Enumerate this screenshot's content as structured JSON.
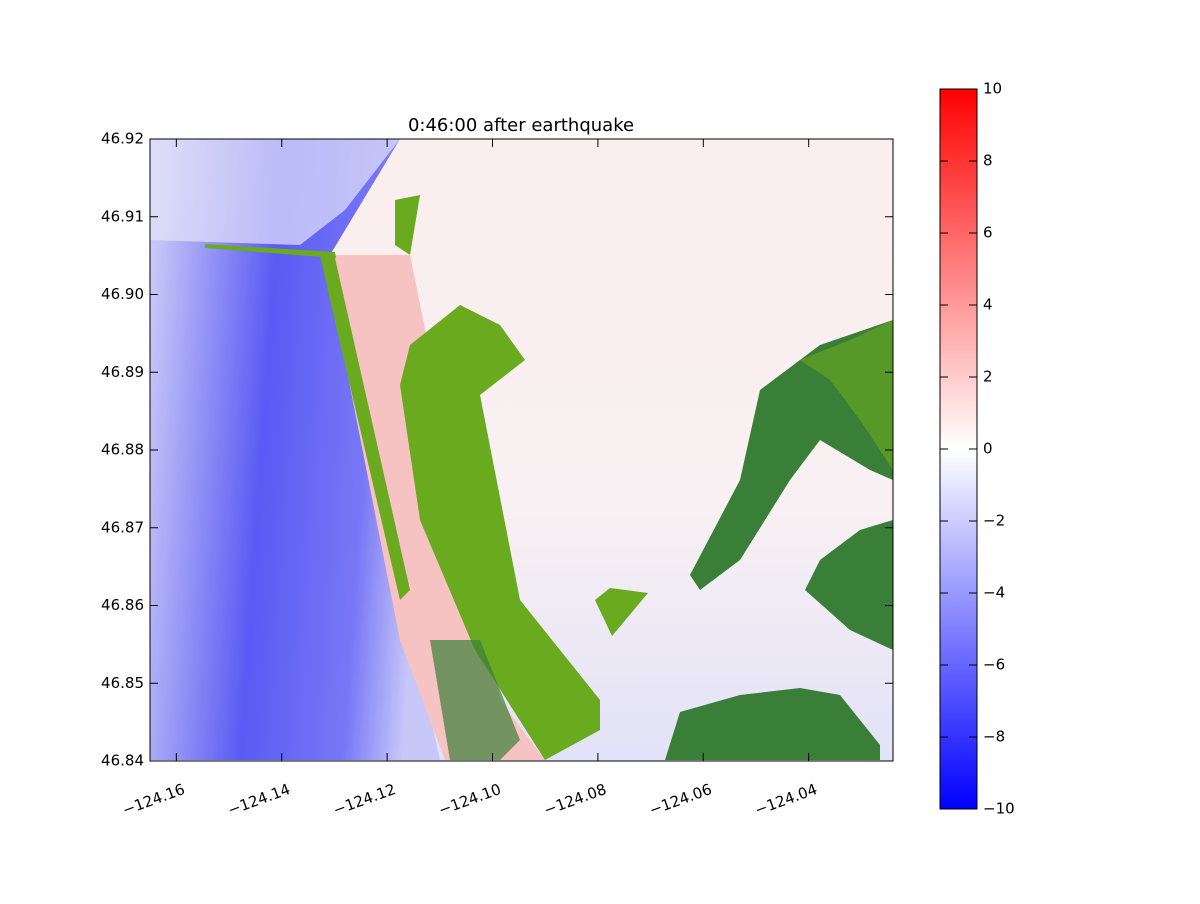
{
  "chart_data": {
    "type": "heatmap",
    "title": "0:46:00 after earthquake",
    "xlim": [
      -124.165,
      -124.024
    ],
    "xticks": [
      {
        "value": -124.16,
        "label": "−124.16"
      },
      {
        "value": -124.14,
        "label": "−124.14"
      },
      {
        "value": -124.12,
        "label": "−124.12"
      },
      {
        "value": -124.1,
        "label": "−124.10"
      },
      {
        "value": -124.08,
        "label": "−124.08"
      },
      {
        "value": -124.06,
        "label": "−124.06"
      },
      {
        "value": -124.04,
        "label": "−124.04"
      }
    ],
    "ylim": [
      46.84,
      46.92
    ],
    "yticks": [
      46.84,
      46.85,
      46.86,
      46.87,
      46.88,
      46.89,
      {
        "value": 46.9,
        "label": "46.90"
      },
      46.91,
      46.92
    ],
    "colorbar": {
      "colormap": "bwr",
      "clim": [
        -10,
        10
      ],
      "ticks": [
        {
          "value": -10,
          "label": "−10"
        },
        {
          "value": -8,
          "label": "−8"
        },
        {
          "value": -6,
          "label": "−6"
        },
        {
          "value": -4,
          "label": "−4"
        },
        {
          "value": -2,
          "label": "−2"
        },
        0,
        2,
        4,
        6,
        8,
        10
      ]
    }
  }
}
